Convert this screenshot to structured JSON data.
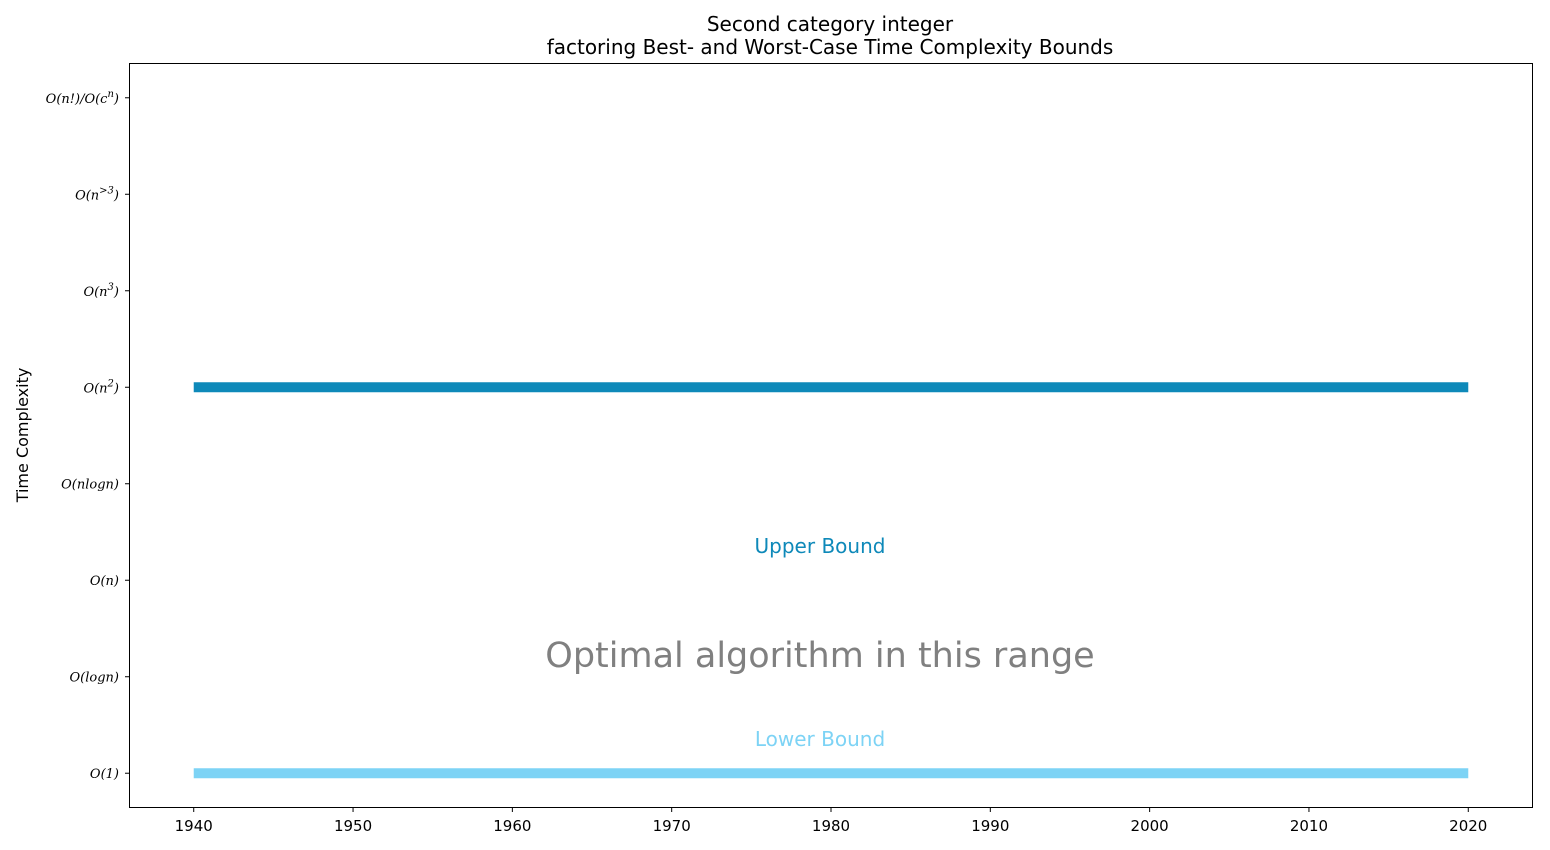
{
  "chart_data": {
    "type": "line",
    "title_line1": "Second category integer",
    "title_line2": "factoring Best- and Worst-Case Time Complexity Bounds",
    "xlabel": "",
    "ylabel": "Time Complexity",
    "xlim": [
      1936,
      2024
    ],
    "ylim": [
      -0.35,
      7.35
    ],
    "xticks": [
      1940,
      1950,
      1960,
      1970,
      1980,
      1990,
      2000,
      2010,
      2020
    ],
    "yticks": [
      {
        "value": 0,
        "label": "O(1)"
      },
      {
        "value": 1,
        "label": "O(logn)"
      },
      {
        "value": 2,
        "label": "O(n)"
      },
      {
        "value": 3,
        "label": "O(nlogn)"
      },
      {
        "value": 4,
        "label": "O(n²)"
      },
      {
        "value": 5,
        "label": "O(n³)"
      },
      {
        "value": 6,
        "label": "O(n>3)"
      },
      {
        "value": 7,
        "label": "O(n!)/O(cⁿ)"
      }
    ],
    "grid": false,
    "series": [
      {
        "name": "Upper Bound",
        "color": "#0e89b9",
        "x": [
          1940,
          2020
        ],
        "y": [
          4,
          4
        ]
      },
      {
        "name": "Lower Bound",
        "color": "#7dd3f5",
        "x": [
          1940,
          2020
        ],
        "y": [
          0,
          0
        ]
      }
    ],
    "annotations": [
      {
        "text": "Upper Bound",
        "x": 1980,
        "y": 2.28,
        "color": "#0e89b9",
        "style": "upper"
      },
      {
        "text": "Optimal algorithm in this range",
        "x": 1980,
        "y": 1.1,
        "color": "#808080",
        "style": "optimal"
      },
      {
        "text": "Lower Bound",
        "x": 1980,
        "y": 0.28,
        "color": "#7dd3f5",
        "style": "lower"
      }
    ]
  }
}
